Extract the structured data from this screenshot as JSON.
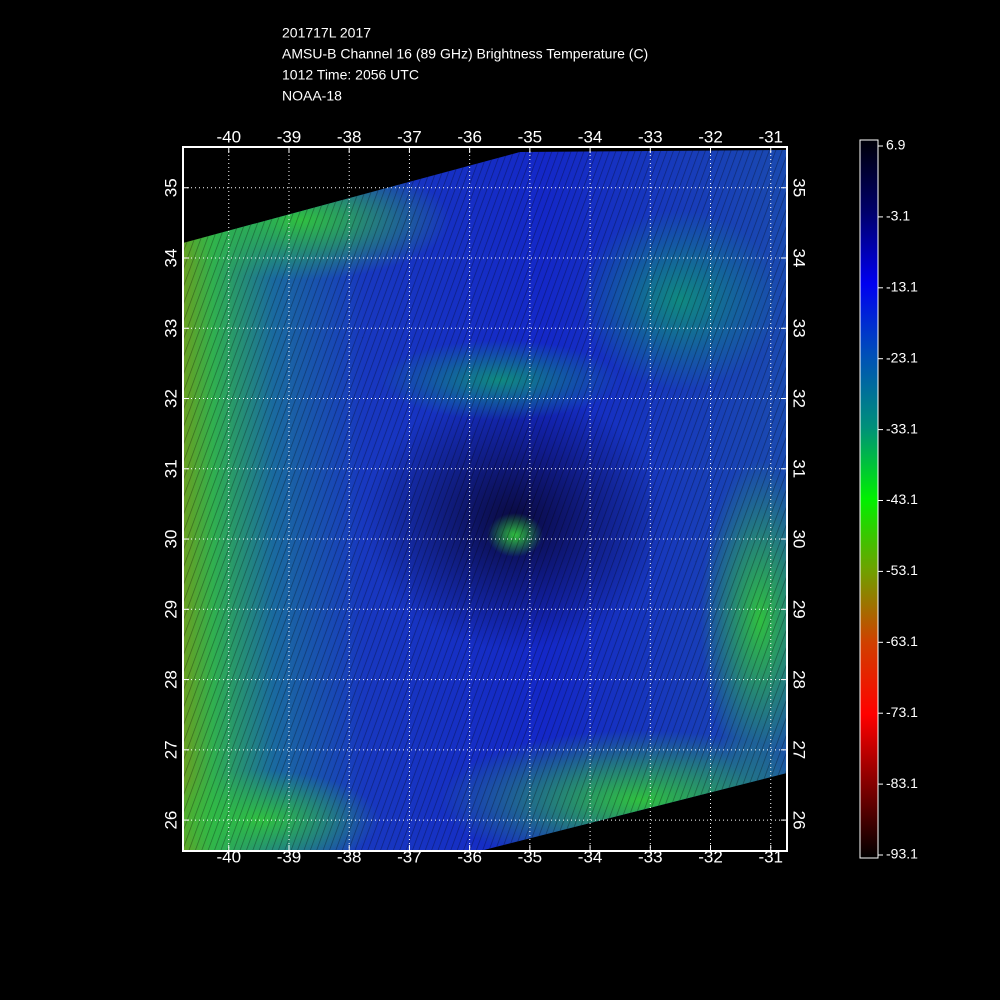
{
  "header": {
    "lines": [
      "201717L 2017",
      "AMSU-B Channel 16 (89 GHz) Brightness Temperature (C)",
      "1012 Time: 2056 UTC",
      "NOAA-18"
    ]
  },
  "map": {
    "lonlim": [
      -40.76,
      -30.73
    ],
    "latlim": [
      25.56,
      35.58
    ],
    "lon_ticks": [
      -40,
      -39,
      -38,
      -37,
      -36,
      -35,
      -34,
      -33,
      -32,
      -31
    ],
    "lat_ticks": [
      26,
      27,
      28,
      29,
      30,
      31,
      32,
      33,
      34,
      35
    ]
  },
  "colorbar": {
    "lim": [
      -93.1,
      6.9
    ],
    "labels": [
      6.9,
      -3.1,
      -13.1,
      -23.1,
      -33.1,
      -43.1,
      -53.1,
      -63.1,
      -73.1,
      -83.1,
      -93.1
    ]
  }
}
